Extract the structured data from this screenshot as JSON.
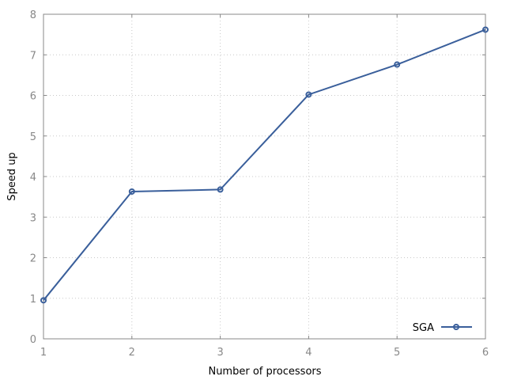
{
  "chart_data": {
    "type": "line",
    "title": "",
    "xlabel": "Number of processors",
    "ylabel": "Speed up",
    "xlim": [
      1,
      6
    ],
    "ylim": [
      0,
      8
    ],
    "xticks": [
      "1",
      "2",
      "3",
      "4",
      "5",
      "6"
    ],
    "yticks": [
      "0",
      "1",
      "2",
      "3",
      "4",
      "5",
      "6",
      "7",
      "8"
    ],
    "grid": true,
    "legend_position": "bottom-right",
    "series": [
      {
        "name": "SGA",
        "color": "#3a5f9b",
        "marker": "circle",
        "x": [
          1,
          2,
          3,
          4,
          5,
          6
        ],
        "y": [
          0.95,
          3.63,
          3.68,
          6.02,
          6.76,
          7.62
        ]
      }
    ]
  }
}
